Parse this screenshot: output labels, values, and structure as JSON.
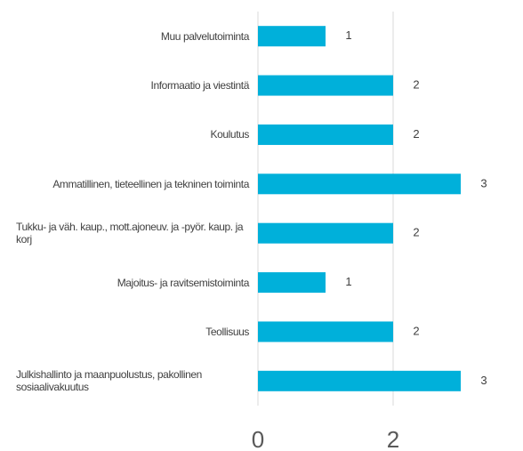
{
  "chart_data": {
    "type": "barh",
    "categories": [
      "Muu palvelutoiminta",
      "Informaatio ja viestintä",
      "Koulutus",
      "Ammatillinen, tieteellinen ja tekninen toiminta",
      "Tukku- ja väh. kaup., mott.ajoneuv. ja -pyör. kaup. ja korj",
      "Majoitus- ja ravitsemistoiminta",
      "Teollisuus",
      "Julkishallinto ja maanpuolustus, pakollinen sosiaalivakuutus"
    ],
    "values": [
      1,
      2,
      2,
      3,
      2,
      1,
      2,
      3
    ],
    "color": "#00b0da",
    "xlim": [
      0,
      3
    ],
    "xticks": [
      0,
      2
    ],
    "grid": true
  }
}
